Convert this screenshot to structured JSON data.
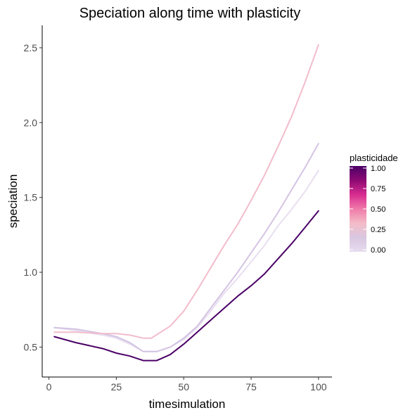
{
  "chart_data": {
    "type": "line",
    "title": "Speciation along time with plasticity",
    "xlabel": "timesimulation",
    "ylabel": "speciation",
    "xlim": [
      -2.5,
      105
    ],
    "ylim": [
      0.3,
      2.65
    ],
    "xticks": [
      0,
      25,
      50,
      75,
      100
    ],
    "xtick_labels": [
      "0",
      "25",
      "50",
      "75",
      "100"
    ],
    "yticks": [
      0.5,
      1.0,
      1.5,
      2.0,
      2.5
    ],
    "ytick_labels": [
      "0.5",
      "1.0",
      "1.5",
      "2.0",
      "2.5"
    ],
    "grid": false,
    "legend": {
      "title": "plasticidade",
      "placement": "right",
      "type": "continuous-colorbar",
      "range": [
        0,
        1
      ],
      "ticks": [
        0,
        0.25,
        0.5,
        0.75,
        1
      ],
      "tick_labels": [
        "0.00",
        "0.25",
        "0.50",
        "0.75",
        "1.00"
      ],
      "colors": [
        "#e6dcef",
        "#d9c7e0",
        "#f4bcc8",
        "#f07aa9",
        "#d72c8f",
        "#8e0a74",
        "#4b0066"
      ]
    },
    "series": [
      {
        "plasticidade": 0.0,
        "color": "#e8def0",
        "x": [
          2,
          10,
          20,
          25,
          30,
          35,
          40,
          45,
          50,
          55,
          60,
          65,
          70,
          75,
          80,
          85,
          90,
          95,
          100
        ],
        "y": [
          0.63,
          0.61,
          0.58,
          0.56,
          0.52,
          0.47,
          0.47,
          0.5,
          0.55,
          0.63,
          0.74,
          0.86,
          0.96,
          1.07,
          1.18,
          1.31,
          1.42,
          1.54,
          1.68
        ]
      },
      {
        "plasticidade": 0.1,
        "color": "#d4c4e3",
        "x": [
          2,
          10,
          20,
          25,
          30,
          35,
          40,
          45,
          50,
          55,
          60,
          65,
          70,
          75,
          80,
          85,
          90,
          95,
          100
        ],
        "y": [
          0.63,
          0.62,
          0.59,
          0.57,
          0.53,
          0.47,
          0.47,
          0.5,
          0.56,
          0.64,
          0.76,
          0.88,
          1.0,
          1.13,
          1.26,
          1.4,
          1.55,
          1.7,
          1.86
        ]
      },
      {
        "plasticidade": 0.25,
        "color": "#f2bccb",
        "x": [
          2,
          10,
          20,
          25,
          30,
          35,
          38,
          45,
          50,
          55,
          60,
          65,
          70,
          75,
          80,
          85,
          90,
          95,
          100
        ],
        "y": [
          0.6,
          0.6,
          0.59,
          0.59,
          0.58,
          0.56,
          0.56,
          0.64,
          0.74,
          0.88,
          1.03,
          1.18,
          1.32,
          1.48,
          1.65,
          1.84,
          2.04,
          2.27,
          2.52
        ]
      },
      {
        "plasticidade": 1.0,
        "color": "#4b0066",
        "x": [
          2,
          10,
          20,
          25,
          30,
          35,
          40,
          45,
          50,
          55,
          60,
          65,
          70,
          75,
          80,
          85,
          90,
          95,
          100
        ],
        "y": [
          0.57,
          0.53,
          0.49,
          0.46,
          0.44,
          0.41,
          0.41,
          0.45,
          0.52,
          0.6,
          0.68,
          0.76,
          0.84,
          0.91,
          0.99,
          1.09,
          1.19,
          1.3,
          1.41
        ]
      }
    ]
  }
}
